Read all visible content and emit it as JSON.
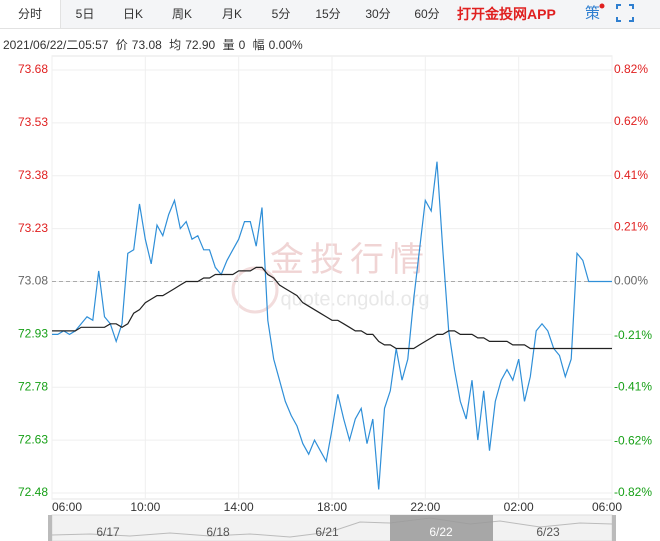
{
  "toolbar": {
    "tabs": [
      "分时",
      "5日",
      "日K",
      "周K",
      "月K",
      "5分",
      "15分",
      "30分",
      "60分"
    ],
    "app_link": "打开金投网APP",
    "strategy": "策"
  },
  "info": {
    "time": "2021/06/22/二05:57",
    "price_label": "价",
    "price": "73.08",
    "avg_label": "均",
    "avg": "72.90",
    "volume_label": "量",
    "volume": "0",
    "change_label": "幅",
    "change": "0.00%"
  },
  "watermark": [
    "金投行情",
    "quote.cngold.org"
  ],
  "navigator": {
    "dates": [
      "6/17",
      "6/18",
      "6/21",
      "6/22",
      "6/23"
    ]
  },
  "chart_data": {
    "type": "line",
    "categories": [
      "06:00",
      null,
      null,
      null,
      null,
      null,
      null,
      null,
      null,
      null,
      null,
      null,
      null,
      null,
      null,
      null,
      "10:00",
      null,
      null,
      null,
      null,
      null,
      null,
      null,
      null,
      null,
      null,
      null,
      null,
      null,
      null,
      null,
      "14:00",
      null,
      null,
      null,
      null,
      null,
      null,
      null,
      null,
      null,
      null,
      null,
      null,
      null,
      null,
      null,
      "18:00",
      null,
      null,
      null,
      null,
      null,
      null,
      null,
      null,
      null,
      null,
      null,
      null,
      null,
      null,
      null,
      "22:00",
      null,
      null,
      null,
      null,
      null,
      null,
      null,
      null,
      null,
      null,
      null,
      null,
      null,
      null,
      null,
      "02:00",
      null,
      null,
      null,
      null,
      null,
      null,
      null,
      null,
      null,
      null,
      null,
      null,
      null,
      null,
      null,
      "06:00"
    ],
    "series": [
      {
        "color": "#2f8fd8",
        "values": [
          72.93,
          72.93,
          72.94,
          72.93,
          72.94,
          72.96,
          72.98,
          72.97,
          73.11,
          72.98,
          72.96,
          72.91,
          72.96,
          73.16,
          73.17,
          73.3,
          73.2,
          73.13,
          73.24,
          73.21,
          73.27,
          73.31,
          73.23,
          73.25,
          73.2,
          73.21,
          73.17,
          73.17,
          73.12,
          73.1,
          73.14,
          73.17,
          73.2,
          73.25,
          73.25,
          73.18,
          73.29,
          72.97,
          72.86,
          72.8,
          72.74,
          72.7,
          72.67,
          72.62,
          72.59,
          72.63,
          72.6,
          72.57,
          72.66,
          72.76,
          72.69,
          72.63,
          72.69,
          72.72,
          72.62,
          72.69,
          72.49,
          72.72,
          72.77,
          72.89,
          72.8,
          72.86,
          73.03,
          73.17,
          73.31,
          73.28,
          73.42,
          73.17,
          72.94,
          72.83,
          72.74,
          72.69,
          72.8,
          72.63,
          72.77,
          72.6,
          72.74,
          72.8,
          72.83,
          72.8,
          72.86,
          72.74,
          72.81,
          72.94,
          72.96,
          72.94,
          72.89,
          72.87,
          72.81,
          72.86,
          73.16,
          73.14,
          73.08,
          73.08,
          73.08,
          73.08,
          73.08
        ]
      },
      {
        "color": "#222222",
        "values": [
          72.94,
          72.94,
          72.94,
          72.94,
          72.94,
          72.95,
          72.95,
          72.95,
          72.95,
          72.95,
          72.96,
          72.96,
          72.95,
          72.96,
          72.99,
          73.0,
          73.02,
          73.03,
          73.04,
          73.04,
          73.05,
          73.06,
          73.07,
          73.08,
          73.08,
          73.08,
          73.09,
          73.09,
          73.1,
          73.1,
          73.1,
          73.1,
          73.11,
          73.11,
          73.11,
          73.12,
          73.12,
          73.1,
          73.09,
          73.07,
          73.06,
          73.05,
          73.04,
          73.02,
          73.01,
          73.0,
          72.99,
          72.98,
          72.97,
          72.97,
          72.96,
          72.95,
          72.94,
          72.94,
          72.93,
          72.93,
          72.91,
          72.9,
          72.9,
          72.89,
          72.89,
          72.89,
          72.89,
          72.9,
          72.91,
          72.92,
          72.93,
          72.93,
          72.94,
          72.94,
          72.93,
          72.93,
          72.93,
          72.92,
          72.92,
          72.91,
          72.91,
          72.91,
          72.91,
          72.9,
          72.9,
          72.9,
          72.89,
          72.89,
          72.89,
          72.89,
          72.89,
          72.89,
          72.89,
          72.89,
          72.89,
          72.89,
          72.89,
          72.89,
          72.89,
          72.89,
          72.89
        ]
      }
    ],
    "reference_line": 73.08,
    "ylim": [
      72.48,
      73.68
    ],
    "yticks": [
      73.68,
      73.53,
      73.38,
      73.23,
      73.08,
      72.93,
      72.78,
      72.63,
      72.48
    ],
    "y2lim": [
      -0.82,
      0.82
    ],
    "y2ticks": [
      {
        "value": 0.82,
        "label": "0.82%"
      },
      {
        "value": 0.62,
        "label": "0.62%"
      },
      {
        "value": 0.41,
        "label": "0.41%"
      },
      {
        "value": 0.21,
        "label": "0.21%"
      },
      {
        "value": 0,
        "label": "0.00%"
      },
      {
        "value": -0.21,
        "label": "-0.21%"
      },
      {
        "value": -0.41,
        "label": "-0.41%"
      },
      {
        "value": -0.62,
        "label": "-0.62%"
      },
      {
        "value": -0.82,
        "label": "-0.82%"
      }
    ],
    "up_color": "#e02020",
    "down_color": "#17a017",
    "flat_color": "#666666",
    "grid": true
  }
}
